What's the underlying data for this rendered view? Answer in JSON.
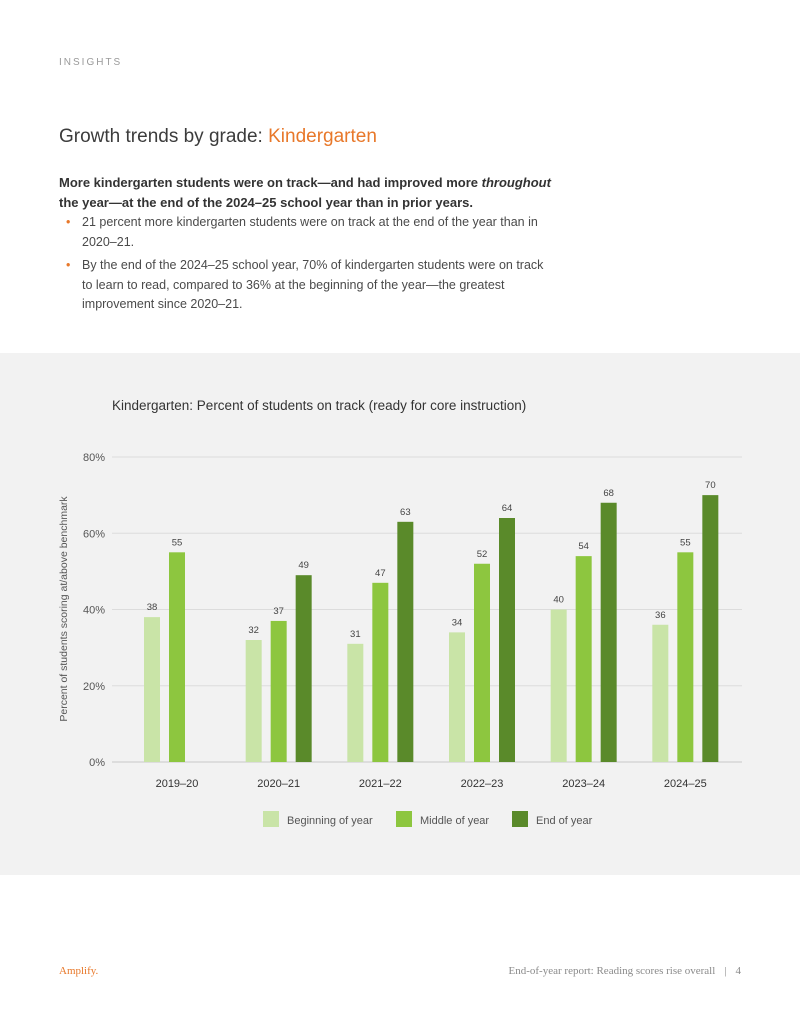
{
  "eyebrow": "INSIGHTS",
  "title": {
    "prefix": "Growth trends by grade: ",
    "accent": "Kindergarten"
  },
  "lead": {
    "part1": "More kindergarten students were on track—and had improved more ",
    "emphasis": "throughout",
    "part2": " the year—at the end of the 2024–25 school year than in prior years."
  },
  "bullets": [
    "21 percent more kindergarten students were on track at the end of the year than in 2020–21.",
    "By the end of the 2024–25 school year, 70% of kindergarten students were on track to learn to read, compared to 36% at the beginning of the year—the greatest improvement since 2020–21."
  ],
  "colors": {
    "accent": "#e8782a",
    "beginning": "#c9e4a7",
    "middle": "#8dc63f",
    "end": "#5a8a2a",
    "panel": "#f2f2f2"
  },
  "chart_data": {
    "type": "bar",
    "title": "Kindergarten: Percent of students on track (ready for core instruction)",
    "xlabel": "",
    "ylabel": "Percent of students scoring at/above benchmark",
    "categories": [
      "2019–20",
      "2020–21",
      "2021–22",
      "2022–23",
      "2023–24",
      "2024–25"
    ],
    "series": [
      {
        "name": "Beginning of year",
        "values": [
          38,
          32,
          31,
          34,
          40,
          36
        ]
      },
      {
        "name": "Middle of year",
        "values": [
          55,
          37,
          47,
          52,
          54,
          55
        ]
      },
      {
        "name": "End of year",
        "values": [
          null,
          49,
          63,
          64,
          68,
          70
        ]
      }
    ],
    "ylim": [
      0,
      80
    ],
    "yticks": [
      "0%",
      "20%",
      "40%",
      "60%",
      "80%"
    ],
    "grid": true,
    "legend": "bottom"
  },
  "footer": {
    "logo": "Amplify.",
    "report": "End-of-year report: Reading scores rise overall",
    "separator": "|",
    "page": "4"
  }
}
